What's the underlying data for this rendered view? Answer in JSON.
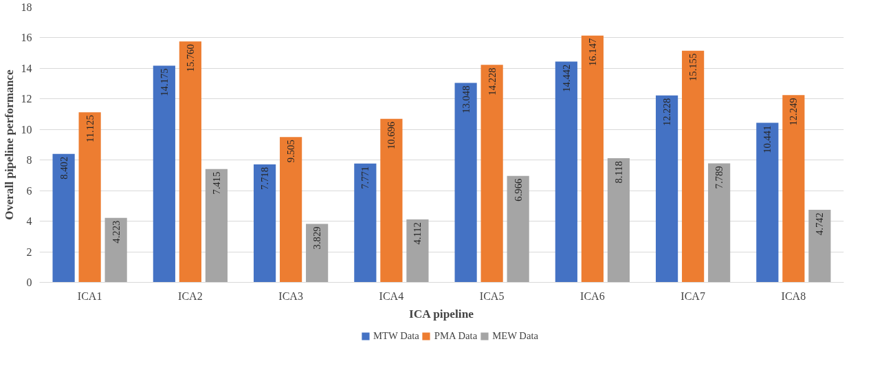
{
  "chart_data": {
    "type": "bar",
    "xlabel": "ICA pipeline",
    "ylabel": "Overall pipeline performance",
    "categories": [
      "ICA1",
      "ICA2",
      "ICA3",
      "ICA4",
      "ICA5",
      "ICA6",
      "ICA7",
      "ICA8"
    ],
    "series": [
      {
        "name": "MTW Data",
        "color": "#4472c4",
        "values": [
          8.402,
          14.175,
          7.718,
          7.771,
          13.048,
          14.442,
          12.228,
          10.441
        ],
        "value_labels": [
          "8.402",
          "14.175",
          "7.718",
          "7.771",
          "13.048",
          "14.442",
          "12.228",
          "10.441"
        ]
      },
      {
        "name": "PMA Data",
        "color": "#ed7d31",
        "values": [
          11.125,
          15.76,
          9.505,
          10.696,
          14.228,
          16.147,
          15.155,
          12.249
        ],
        "value_labels": [
          "11.125",
          "15.760",
          "9.505",
          "10.696",
          "14.228",
          "16.147",
          "15.155",
          "12.249"
        ]
      },
      {
        "name": "MEW Data",
        "color": "#a5a5a5",
        "values": [
          4.223,
          7.415,
          3.829,
          4.112,
          6.966,
          8.118,
          7.789,
          4.742
        ],
        "value_labels": [
          "4.223",
          "7.415",
          "3.829",
          "4.112",
          "6.966",
          "8.118",
          "7.789",
          "4.742"
        ]
      }
    ],
    "ylim": [
      0,
      18
    ],
    "yticks": [
      0,
      2,
      4,
      6,
      8,
      10,
      12,
      14,
      16,
      18
    ],
    "grid": "y",
    "legend": "bottom",
    "data_labels": true
  }
}
